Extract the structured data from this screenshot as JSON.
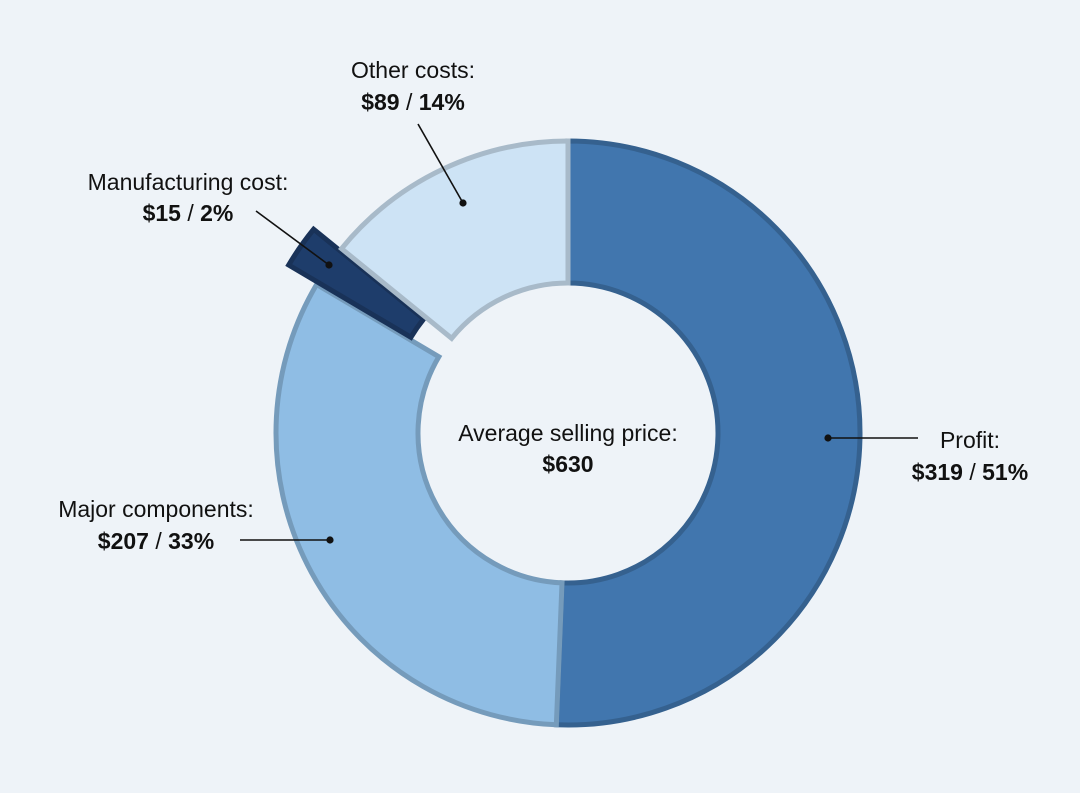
{
  "chart_data": {
    "type": "pie",
    "variant": "donut",
    "center_label": "Average selling price:",
    "center_value": "$630",
    "slices": [
      {
        "label": "Profit:",
        "amount": "$319",
        "percent": "51%",
        "value": 319,
        "color": "#4176ae",
        "exploded": false
      },
      {
        "label": "Major components:",
        "amount": "$207",
        "percent": "33%",
        "value": 207,
        "color": "#8fbde4",
        "exploded": false
      },
      {
        "label": "Manufacturing cost:",
        "amount": "$15",
        "percent": "2%",
        "value": 15,
        "color": "#1e3d6b",
        "exploded": true
      },
      {
        "label": "Other costs:",
        "amount": "$89",
        "percent": "14%",
        "value": 89,
        "color": "#cde3f5",
        "exploded": false
      }
    ],
    "separator": "/"
  }
}
